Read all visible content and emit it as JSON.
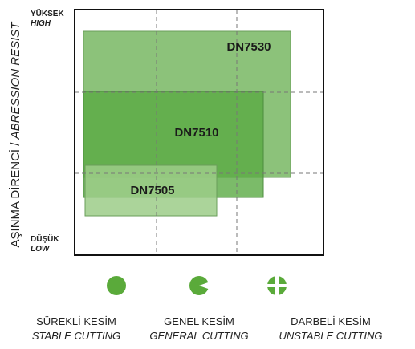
{
  "axis": {
    "title": "AŞINMA DİRENCİ / ",
    "title_en": "ABRESSION RESIST",
    "high": "YÜKSEK",
    "high_en": "HIGH",
    "low": "DÜŞÜK",
    "low_en": "LOW"
  },
  "products": [
    {
      "label": "DN7530"
    },
    {
      "label": "DN7510"
    },
    {
      "label": "DN7505"
    }
  ],
  "cutting_types": [
    {
      "label": "SÜREKLİ KESİM",
      "label_en": "STABLE CUTTING"
    },
    {
      "label": "GENEL KESİM",
      "label_en": "GENERAL CUTTING"
    },
    {
      "label": "DARBELİ KESİM",
      "label_en": "UNSTABLE CUTTING"
    }
  ]
}
